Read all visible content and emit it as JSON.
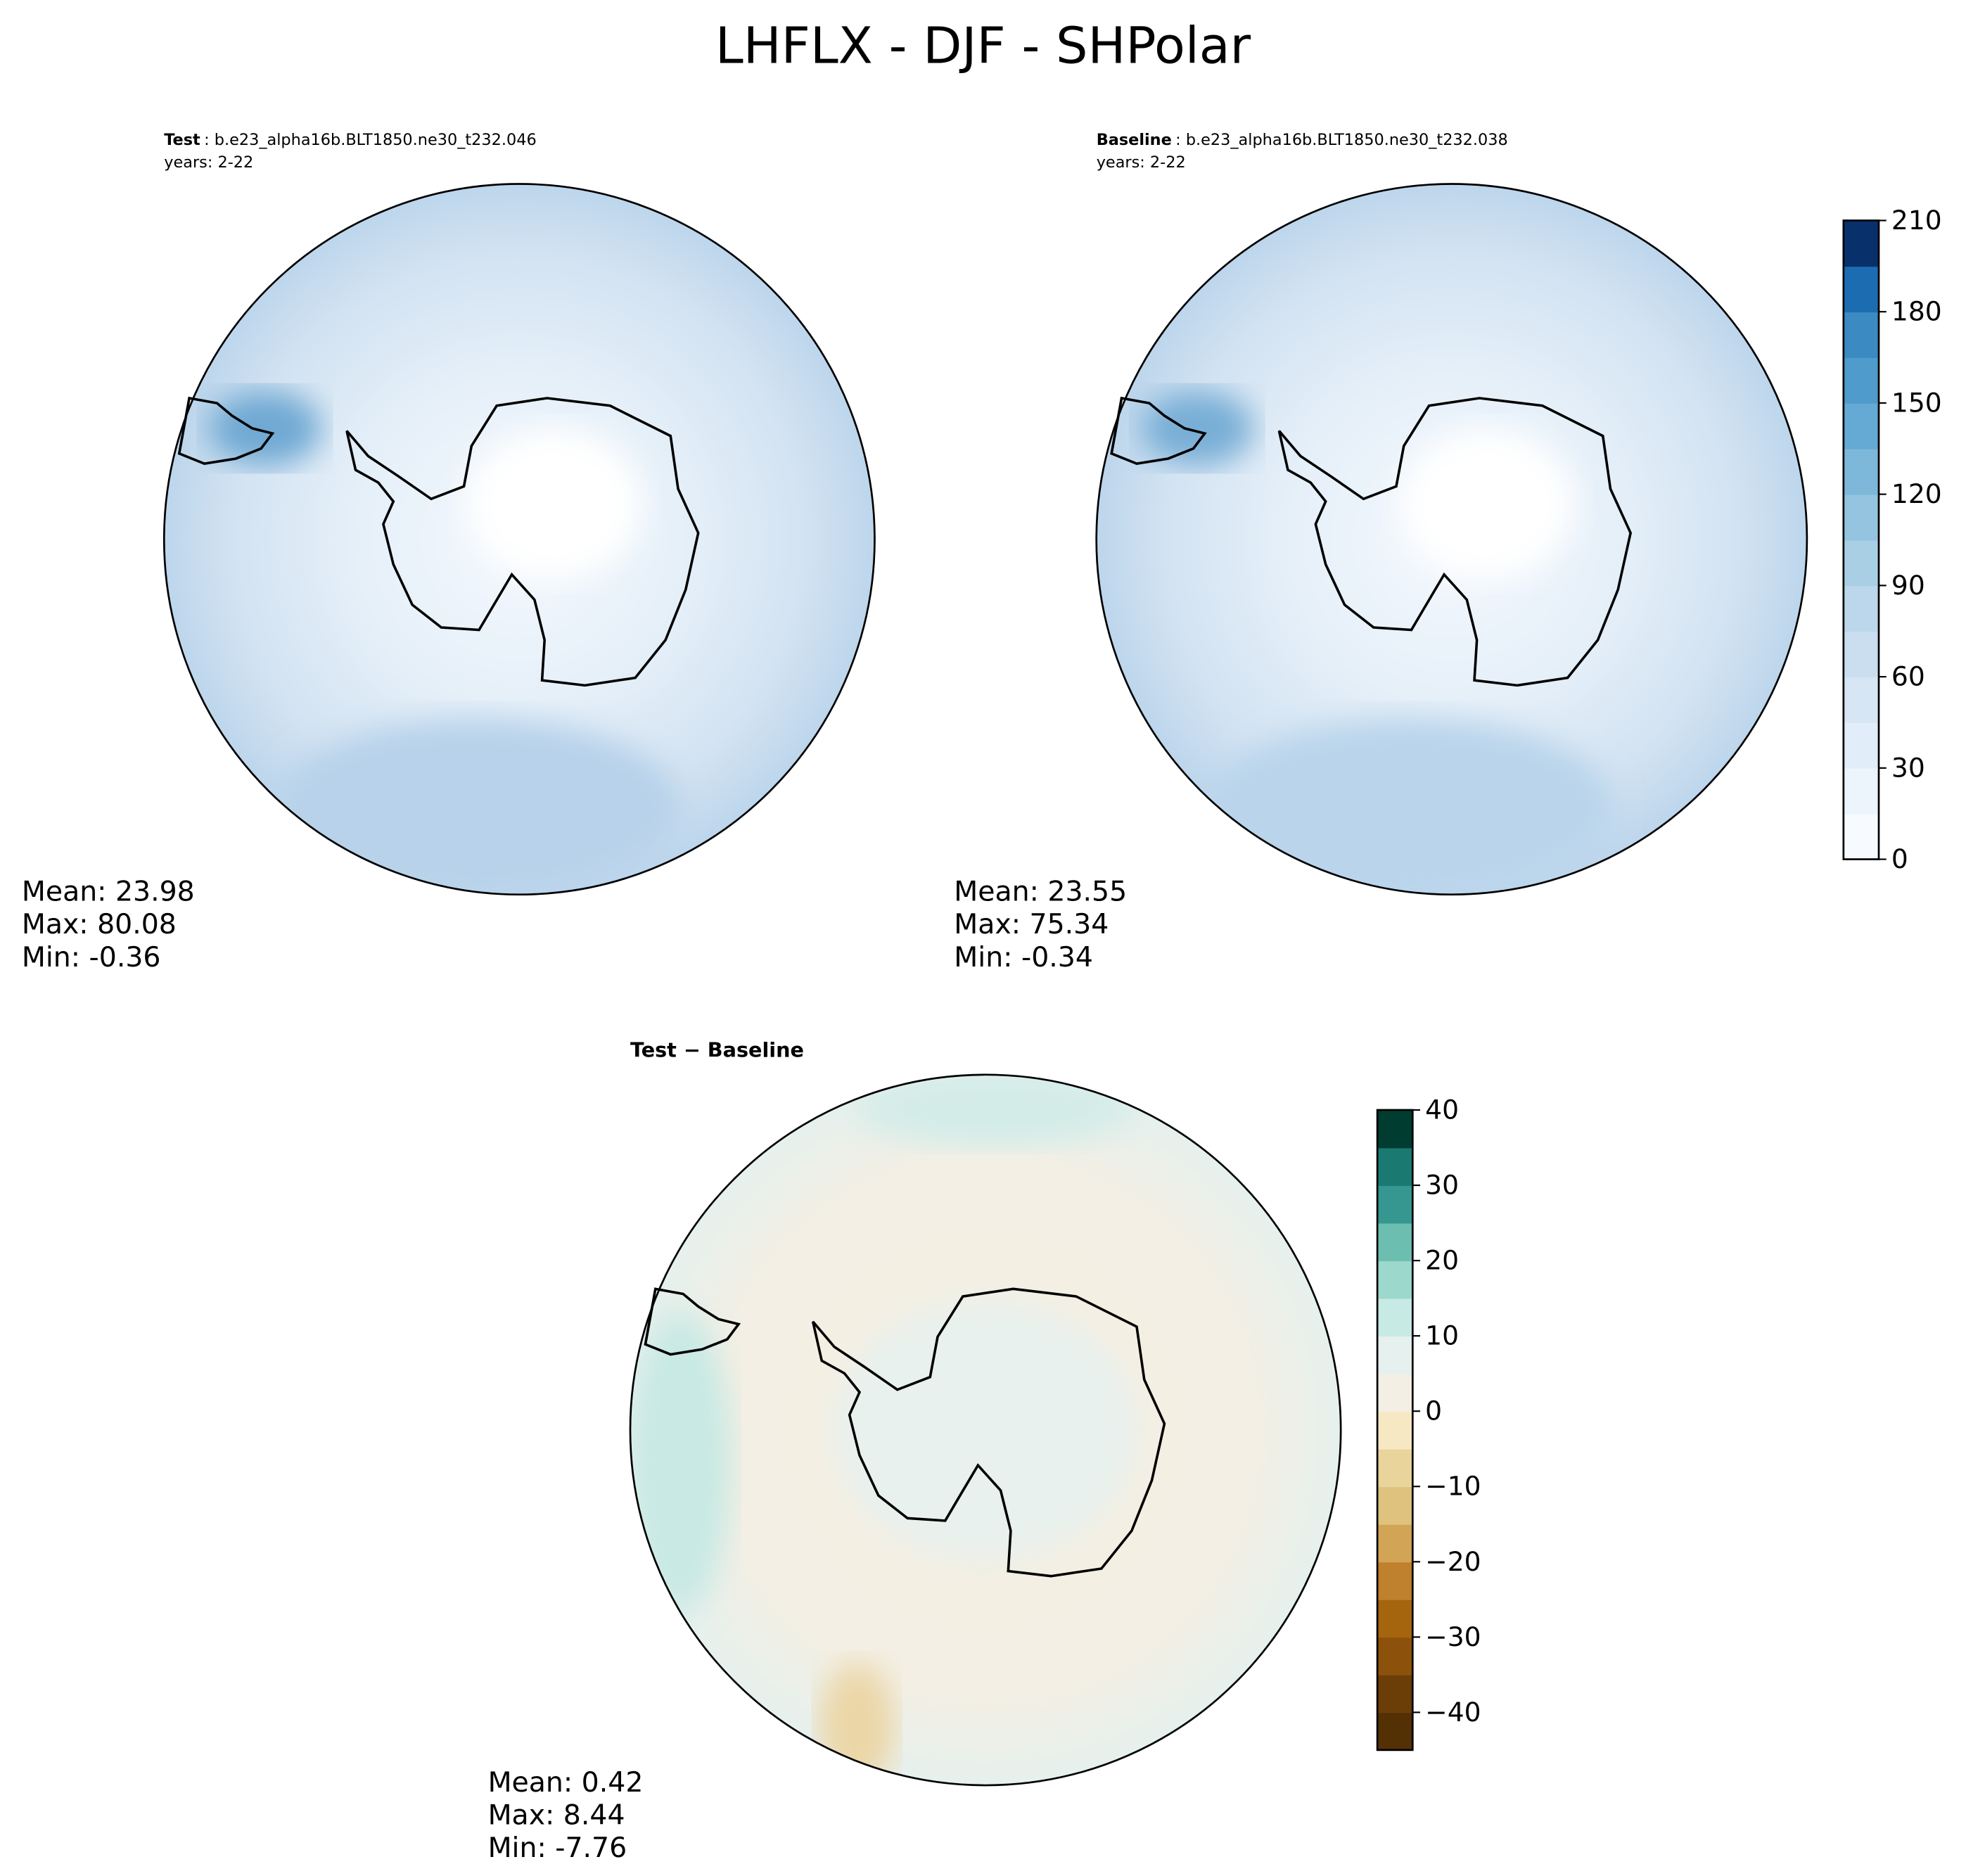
{
  "title": "LHFLX - DJF - SHPolar",
  "panels": [
    {
      "label": "Test",
      "caption": ": b.e23_alpha16b.BLT1850.ne30_t232.046",
      "years": "years: 2-22",
      "stats": [
        "Mean: 23.98",
        "Max: 80.08",
        "Min: -0.36"
      ]
    },
    {
      "label": "Baseline",
      "caption": ": b.e23_alpha16b.BLT1850.ne30_t232.038",
      "years": "years: 2-22",
      "stats": [
        "Mean: 23.55",
        "Max: 75.34",
        "Min: -0.34"
      ]
    }
  ],
  "difference": {
    "title": "Test − Baseline",
    "stats": [
      "Mean:  0.42",
      "Max:  8.44",
      "Min: -7.76"
    ]
  },
  "colorbars": [
    {
      "lim": [
        0,
        210
      ],
      "ticks": [
        0,
        30,
        60,
        90,
        120,
        150,
        180,
        210
      ],
      "colors": [
        "#f7fbff",
        "#ecf4fc",
        "#e1edf8",
        "#d6e6f4",
        "#cadef0",
        "#bcd7eb",
        "#a9cfe5",
        "#94c4df",
        "#7db8da",
        "#65aad4",
        "#4f9bcb",
        "#3b8ac2",
        "#1c6cb1",
        "#08306b"
      ]
    },
    {
      "lim": [
        -45,
        40
      ],
      "ticks": [
        {
          "value": -40,
          "label": "−40"
        },
        {
          "value": -30,
          "label": "−30"
        },
        {
          "value": -20,
          "label": "−20"
        },
        {
          "value": -10,
          "label": "−10"
        },
        0,
        10,
        20,
        30,
        40
      ],
      "colors": [
        "#543005",
        "#6b3d07",
        "#8c510a",
        "#a5650f",
        "#bf812d",
        "#d2a456",
        "#dfc27d",
        "#e9d49c",
        "#f6e8c3",
        "#f4efe4",
        "#e6f0ee",
        "#c7eae5",
        "#9dd8cc",
        "#6cbfb0",
        "#35978f",
        "#1a7a71",
        "#003c30"
      ]
    }
  ]
}
